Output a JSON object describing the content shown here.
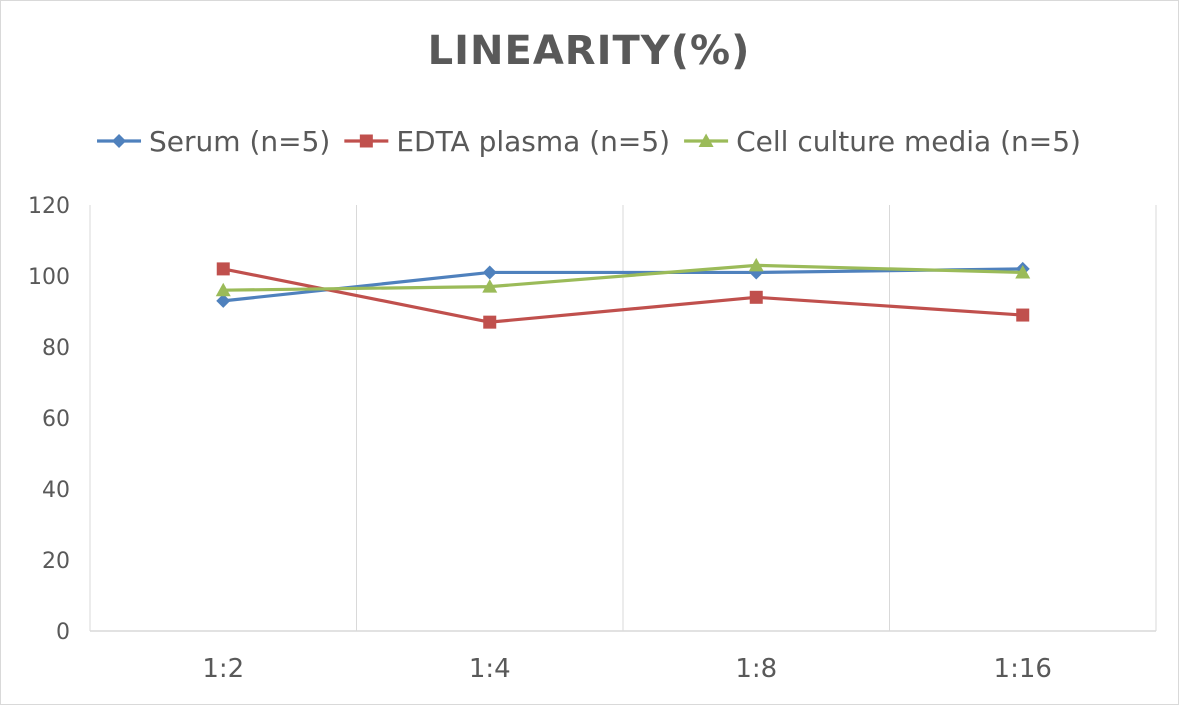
{
  "chart_data": {
    "type": "line",
    "title": "LINEARITY(%)",
    "categories": [
      "1:2",
      "1:4",
      "1:8",
      "1:16"
    ],
    "series": [
      {
        "name": "Serum (n=5)",
        "values": [
          93,
          101,
          101,
          102
        ],
        "color": "#4f81bd",
        "marker": "diamond"
      },
      {
        "name": "EDTA plasma (n=5)",
        "values": [
          102,
          87,
          94,
          89
        ],
        "color": "#c0504d",
        "marker": "square"
      },
      {
        "name": "Cell culture media (n=5)",
        "values": [
          96,
          97,
          103,
          101
        ],
        "color": "#9bbb59",
        "marker": "triangle"
      }
    ],
    "ylim": [
      0,
      120
    ],
    "yticks": [
      "0",
      "20",
      "40",
      "60",
      "80",
      "100",
      "120"
    ],
    "grid": "vertical",
    "legend": "top"
  }
}
